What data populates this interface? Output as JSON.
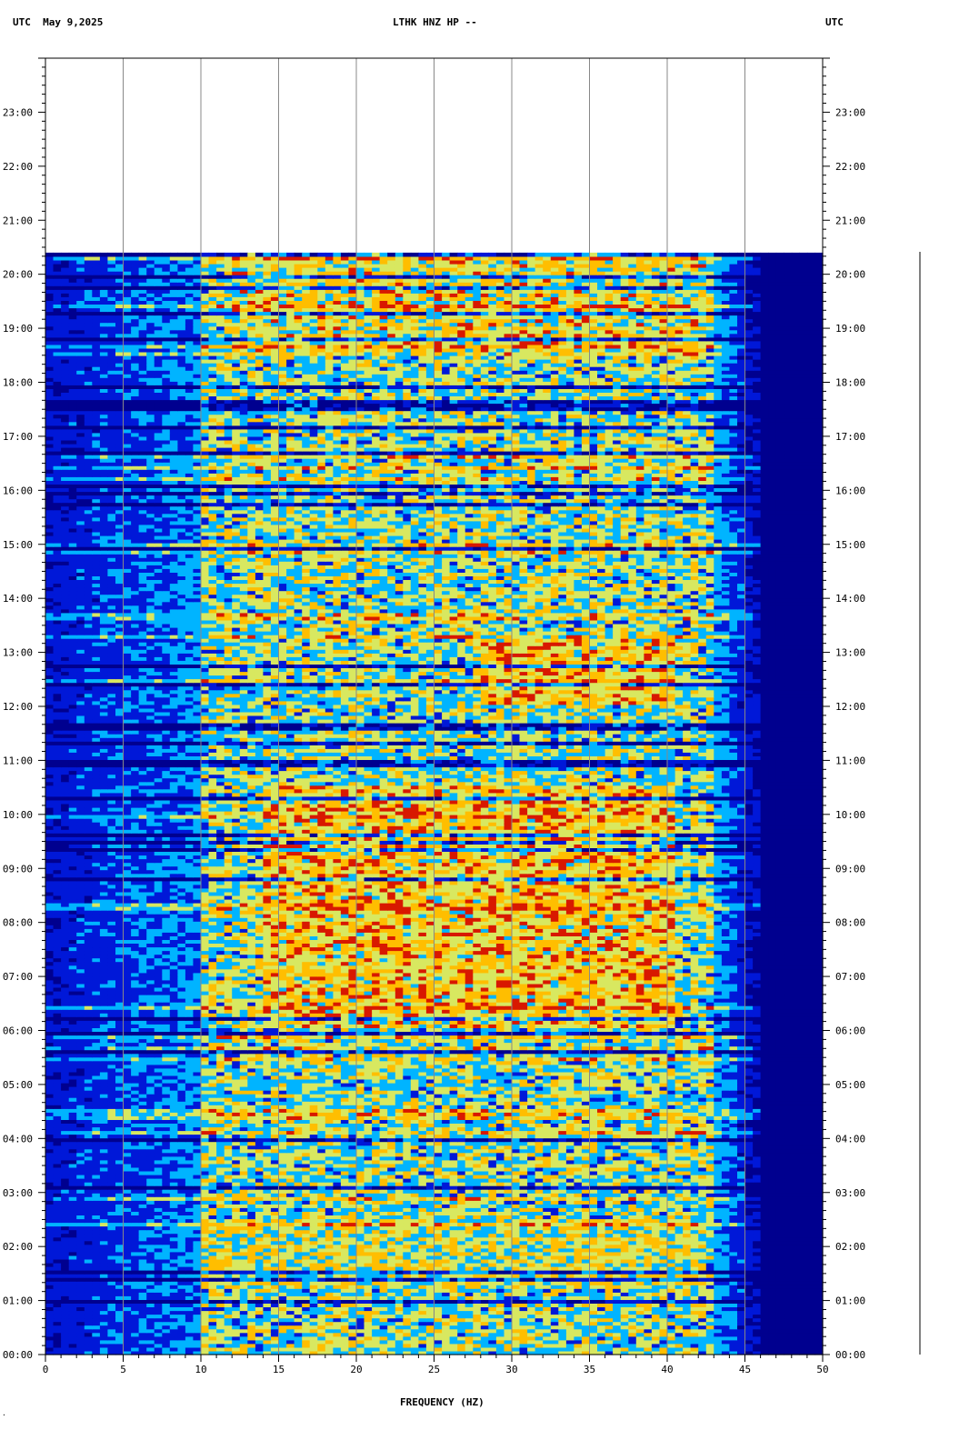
{
  "header": {
    "left": "UTC  May 9,2025",
    "center": "LTHK HNZ HP --",
    "right": "UTC"
  },
  "footer": {
    "corner_mark": "·"
  },
  "colors": {
    "background_bin": "#00008f",
    "low": "#0018d8",
    "mid_low": "#00b4ff",
    "mid": "#d8e860",
    "high": "#ffbe00",
    "peak": "#d81800"
  },
  "chart_data": {
    "type": "heatmap",
    "title": "LTHK HNZ HP --",
    "xlabel": "FREQUENCY (HZ)",
    "ylabel": "UTC",
    "xlim": [
      0,
      50
    ],
    "ylim": [
      0,
      24
    ],
    "x_ticks": [
      "0",
      "5",
      "10",
      "15",
      "20",
      "25",
      "30",
      "35",
      "40",
      "45",
      "50"
    ],
    "y_ticks_left": [
      "00:00",
      "01:00",
      "02:00",
      "03:00",
      "04:00",
      "05:00",
      "06:00",
      "07:00",
      "08:00",
      "09:00",
      "10:00",
      "11:00",
      "12:00",
      "13:00",
      "14:00",
      "15:00",
      "16:00",
      "17:00",
      "18:00",
      "19:00",
      "20:00",
      "21:00",
      "22:00",
      "23:00"
    ],
    "data_end_hour": 20.4,
    "signal_band_hz": [
      10,
      43
    ],
    "energetic_bands": [
      {
        "t0": 6.0,
        "t1": 10.5,
        "f0": 14,
        "f1": 40,
        "level": 0.85
      },
      {
        "t0": 12.0,
        "t1": 13.2,
        "f0": 28,
        "f1": 40,
        "level": 0.85
      },
      {
        "t0": 18.5,
        "t1": 20.4,
        "f0": 12,
        "f1": 42,
        "level": 0.8
      },
      {
        "t0": 1.2,
        "t1": 2.5,
        "f0": 8,
        "f1": 42,
        "level": 0.75
      }
    ],
    "grid": true,
    "colormap": [
      "#00008f",
      "#0018d8",
      "#00b4ff",
      "#d8e860",
      "#ffbe00",
      "#d81800"
    ]
  }
}
